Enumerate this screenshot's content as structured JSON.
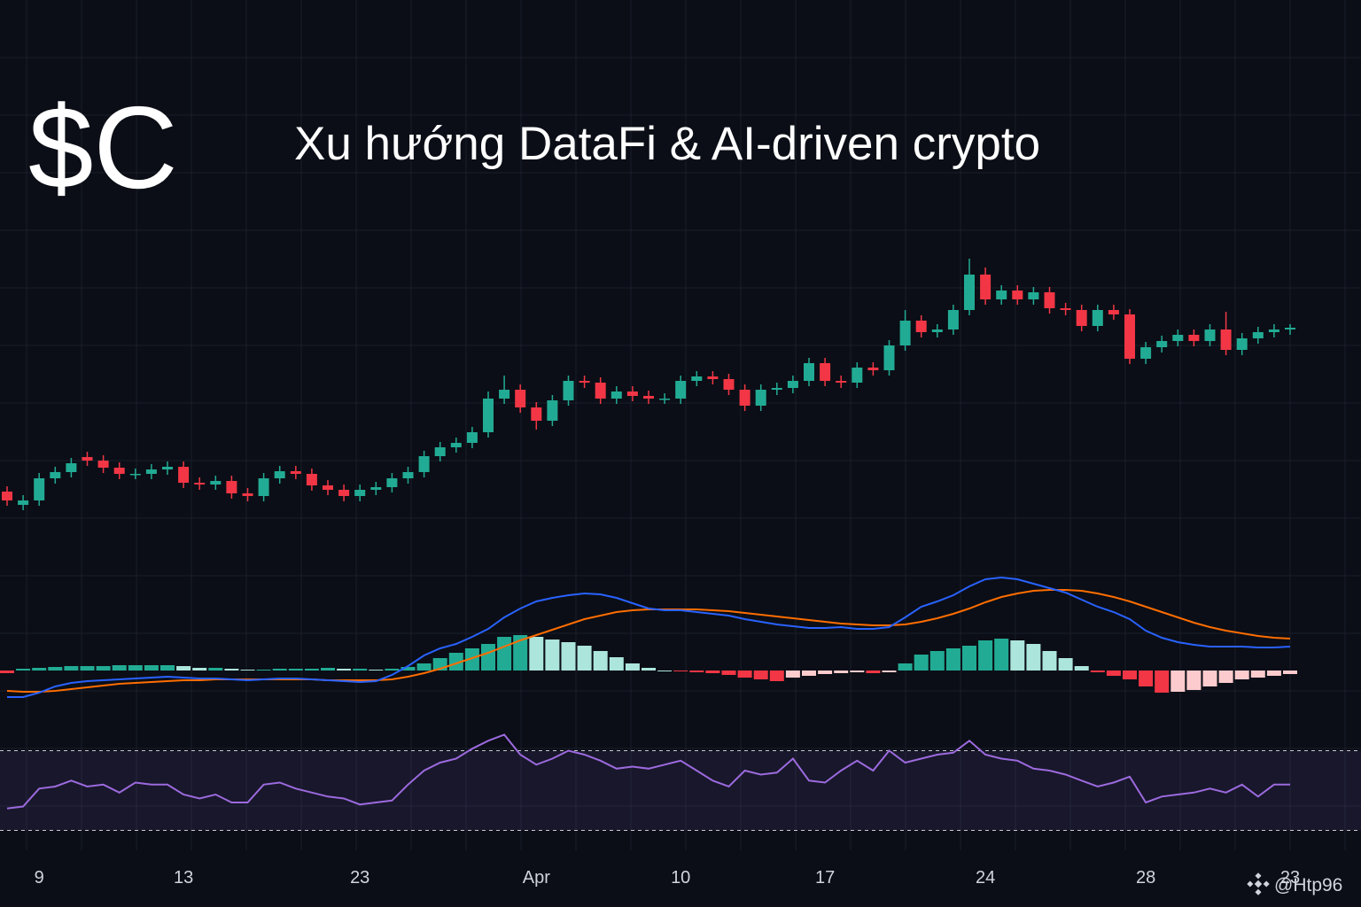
{
  "symbol": "$C",
  "watermark": "@Htp96",
  "chart_data": [
    {
      "type": "candlestick",
      "title": "Xu hướng DataFi & AI-driven crypto",
      "categories": [
        null,
        null,
        "9",
        null,
        null,
        null,
        null,
        null,
        null,
        null,
        null,
        "13",
        null,
        null,
        null,
        null,
        null,
        null,
        null,
        null,
        null,
        null,
        "23",
        null,
        null,
        null,
        null,
        null,
        null,
        null,
        null,
        null,
        null,
        "Apr",
        null,
        null,
        null,
        null,
        null,
        null,
        null,
        null,
        "10",
        null,
        null,
        null,
        null,
        null,
        null,
        null,
        null,
        "17",
        null,
        null,
        null,
        null,
        null,
        null,
        null,
        null,
        null,
        "24",
        null,
        null,
        null,
        null,
        null,
        null,
        null,
        null,
        null,
        "28",
        null,
        null,
        null,
        null,
        null,
        null,
        null,
        null,
        "23"
      ],
      "open": [
        45,
        30,
        35,
        60,
        67,
        84,
        80,
        72,
        65,
        65,
        70,
        73,
        55,
        53,
        57,
        43,
        40,
        60,
        68,
        65,
        52,
        47,
        40,
        47,
        50,
        60,
        67,
        85,
        95,
        100,
        112,
        150,
        160,
        140,
        125,
        148,
        170,
        168,
        150,
        158,
        153,
        150,
        150,
        170,
        175,
        172,
        160,
        142,
        160,
        162,
        170,
        190,
        170,
        168,
        185,
        182,
        210,
        238,
        225,
        228,
        250,
        290,
        262,
        272,
        262,
        270,
        252,
        250,
        232,
        250,
        245,
        195,
        208,
        215,
        222,
        215,
        228,
        205,
        218,
        225,
        228
      ],
      "high": [
        51,
        41,
        66,
        73,
        83,
        90,
        86,
        78,
        71,
        76,
        79,
        79,
        61,
        63,
        63,
        49,
        66,
        74,
        74,
        71,
        58,
        53,
        53,
        56,
        66,
        73,
        91,
        101,
        106,
        118,
        158,
        176,
        166,
        146,
        154,
        176,
        176,
        174,
        164,
        164,
        159,
        156,
        176,
        181,
        181,
        178,
        166,
        166,
        168,
        176,
        196,
        196,
        176,
        191,
        191,
        216,
        250,
        244,
        234,
        256,
        308,
        298,
        278,
        278,
        276,
        276,
        258,
        256,
        256,
        256,
        251,
        214,
        221,
        228,
        228,
        234,
        248,
        224,
        231,
        234,
        234
      ],
      "low": [
        29,
        24,
        29,
        54,
        61,
        74,
        66,
        59,
        59,
        59,
        64,
        49,
        47,
        47,
        37,
        34,
        34,
        54,
        59,
        46,
        41,
        34,
        34,
        41,
        44,
        54,
        61,
        79,
        89,
        94,
        106,
        144,
        134,
        115,
        119,
        142,
        162,
        144,
        144,
        147,
        144,
        144,
        144,
        164,
        166,
        154,
        136,
        136,
        154,
        156,
        164,
        164,
        162,
        162,
        176,
        176,
        204,
        219,
        219,
        222,
        244,
        256,
        256,
        256,
        256,
        246,
        244,
        226,
        226,
        239,
        189,
        189,
        202,
        209,
        209,
        209,
        199,
        199,
        212,
        219,
        222
      ],
      "close": [
        35,
        35,
        60,
        67,
        77,
        80,
        72,
        65,
        65,
        70,
        73,
        55,
        53,
        57,
        43,
        40,
        60,
        68,
        65,
        52,
        47,
        40,
        47,
        50,
        60,
        67,
        85,
        95,
        100,
        112,
        150,
        160,
        140,
        125,
        148,
        170,
        168,
        150,
        158,
        153,
        150,
        150,
        170,
        175,
        172,
        160,
        142,
        160,
        162,
        170,
        190,
        170,
        168,
        185,
        182,
        210,
        238,
        225,
        228,
        250,
        290,
        262,
        272,
        262,
        270,
        252,
        250,
        232,
        250,
        245,
        195,
        208,
        215,
        222,
        215,
        228,
        205,
        218,
        225,
        228,
        230
      ],
      "up_color": "#22ab94",
      "down_color": "#f23645",
      "ylim": [
        0,
        340
      ]
    },
    {
      "type": "macd",
      "histogram": {
        "values": [
          -3,
          2,
          3,
          4,
          5,
          5,
          5,
          6,
          6,
          6,
          6,
          5,
          3,
          3,
          2,
          1,
          1,
          2,
          2,
          2,
          3,
          2,
          2,
          1,
          2,
          4,
          8,
          14,
          20,
          25,
          30,
          38,
          40,
          38,
          35,
          32,
          28,
          22,
          15,
          8,
          3,
          0,
          -1,
          -2,
          -3,
          -5,
          -8,
          -10,
          -12,
          -8,
          -6,
          -4,
          -3,
          -2,
          -3,
          -2,
          8,
          18,
          22,
          25,
          28,
          34,
          36,
          34,
          30,
          22,
          14,
          5,
          -2,
          -6,
          -10,
          -18,
          -25,
          -24,
          -22,
          -18,
          -14,
          -10,
          -8,
          -6,
          -4
        ],
        "colors": {
          "rising_above": "#22ab94",
          "falling_above": "#acE5dc",
          "falling_below": "#f23645",
          "rising_below": "#fccbcd"
        }
      },
      "macd": {
        "color": "#2962ff",
        "values": [
          -30,
          -30,
          -25,
          -18,
          -14,
          -12,
          -11,
          -10,
          -9,
          -8,
          -7,
          -8,
          -9,
          -9,
          -10,
          -11,
          -10,
          -9,
          -9,
          -10,
          -11,
          -12,
          -13,
          -12,
          -5,
          5,
          17,
          25,
          30,
          38,
          47,
          60,
          70,
          78,
          82,
          85,
          87,
          86,
          82,
          76,
          70,
          68,
          68,
          66,
          64,
          62,
          58,
          55,
          52,
          50,
          48,
          48,
          49,
          47,
          47,
          49,
          60,
          72,
          78,
          85,
          95,
          103,
          105,
          103,
          98,
          93,
          88,
          80,
          72,
          66,
          58,
          45,
          37,
          32,
          29,
          27,
          27,
          27,
          26,
          26,
          27
        ]
      },
      "signal": {
        "color": "#ff6d00",
        "values": [
          -23,
          -24,
          -24,
          -23,
          -21,
          -19,
          -17,
          -15,
          -14,
          -13,
          -12,
          -11,
          -11,
          -10,
          -10,
          -10,
          -10,
          -10,
          -10,
          -10,
          -11,
          -11,
          -11,
          -11,
          -10,
          -7,
          -3,
          2,
          8,
          14,
          20,
          27,
          34,
          40,
          46,
          52,
          58,
          62,
          66,
          68,
          69,
          69,
          69,
          69,
          68,
          67,
          65,
          63,
          61,
          59,
          57,
          55,
          53,
          52,
          51,
          51,
          52,
          55,
          59,
          64,
          70,
          77,
          83,
          87,
          90,
          91,
          91,
          90,
          87,
          83,
          78,
          72,
          66,
          60,
          54,
          49,
          45,
          42,
          39,
          37,
          36
        ]
      },
      "ylim": [
        -40,
        120
      ]
    },
    {
      "type": "rsi",
      "color": "#9c6ade",
      "values": [
        41,
        42,
        51,
        52,
        55,
        52,
        53,
        49,
        54,
        53,
        53,
        48,
        46,
        48,
        44,
        44,
        53,
        54,
        51,
        49,
        47,
        46,
        43,
        44,
        45,
        53,
        60,
        64,
        66,
        71,
        75,
        78,
        68,
        63,
        66,
        70,
        68,
        65,
        61,
        62,
        61,
        63,
        65,
        60,
        55,
        52,
        60,
        58,
        59,
        66,
        55,
        54,
        60,
        65,
        60,
        70,
        64,
        66,
        68,
        69,
        75,
        68,
        66,
        65,
        61,
        60,
        58,
        55,
        52,
        54,
        57,
        44,
        47,
        48,
        49,
        51,
        49,
        53,
        47,
        53,
        53
      ],
      "levels": [
        70,
        30
      ],
      "band_color": "#7e57c2",
      "ylim": [
        20,
        80
      ]
    }
  ]
}
